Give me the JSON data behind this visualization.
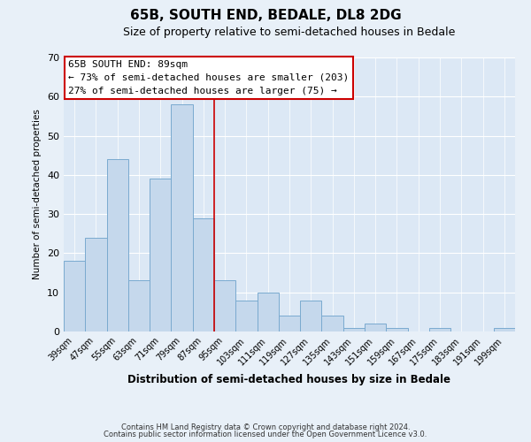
{
  "title": "65B, SOUTH END, BEDALE, DL8 2DG",
  "subtitle": "Size of property relative to semi-detached houses in Bedale",
  "xlabel": "Distribution of semi-detached houses by size in Bedale",
  "ylabel": "Number of semi-detached properties",
  "categories": [
    "39sqm",
    "47sqm",
    "55sqm",
    "63sqm",
    "71sqm",
    "79sqm",
    "87sqm",
    "95sqm",
    "103sqm",
    "111sqm",
    "119sqm",
    "127sqm",
    "135sqm",
    "143sqm",
    "151sqm",
    "159sqm",
    "167sqm",
    "175sqm",
    "183sqm",
    "191sqm",
    "199sqm"
  ],
  "values": [
    18,
    24,
    44,
    13,
    39,
    58,
    29,
    13,
    8,
    10,
    4,
    8,
    4,
    1,
    2,
    1,
    0,
    1,
    0,
    0,
    1
  ],
  "bar_color": "#c5d8ec",
  "bar_edge_color": "#7aaacf",
  "vline_color": "#cc0000",
  "annotation_title": "65B SOUTH END: 89sqm",
  "annotation_line1": "← 73% of semi-detached houses are smaller (203)",
  "annotation_line2": "27% of semi-detached houses are larger (75) →",
  "annotation_box_color": "#ffffff",
  "annotation_box_edge": "#cc0000",
  "ylim": [
    0,
    70
  ],
  "yticks": [
    0,
    10,
    20,
    30,
    40,
    50,
    60,
    70
  ],
  "footer1": "Contains HM Land Registry data © Crown copyright and database right 2024.",
  "footer2": "Contains public sector information licensed under the Open Government Licence v3.0.",
  "bg_color": "#e8f0f8",
  "plot_bg_color": "#dce8f5",
  "title_fontsize": 11,
  "subtitle_fontsize": 9
}
